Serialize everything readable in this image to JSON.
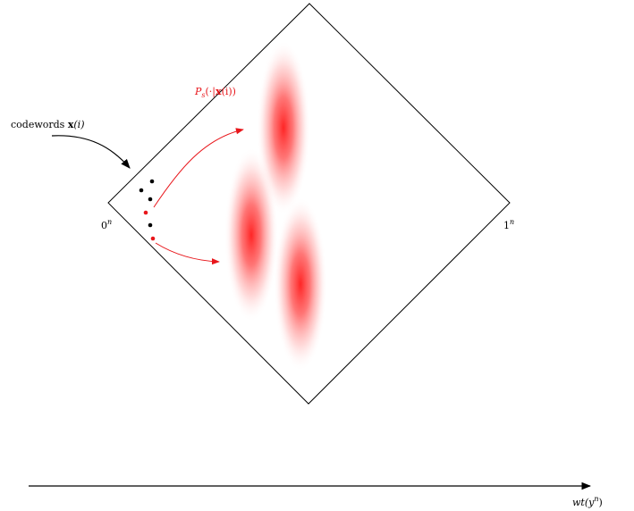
{
  "labels": {
    "codewords_prefix": "codewords ",
    "codewords_bold": "x",
    "codewords_suffix": "(i)",
    "zero_corner_base": "0",
    "zero_corner_sup": "n",
    "one_corner_base": "1",
    "one_corner_sup": "n",
    "ps_text": "P",
    "ps_sub": "s",
    "ps_rest_1": "(·|",
    "ps_bold": "x",
    "ps_rest_2": "(i))",
    "axis_base": "wt(y",
    "axis_sup": "n",
    "axis_close": ")"
  },
  "colors": {
    "line": "#000000",
    "accent": "#e8161b",
    "blob": "#ff2020"
  },
  "codeword_dots": [
    {
      "color": "black"
    },
    {
      "color": "black"
    },
    {
      "color": "black"
    },
    {
      "color": "red"
    },
    {
      "color": "black"
    },
    {
      "color": "red"
    }
  ]
}
